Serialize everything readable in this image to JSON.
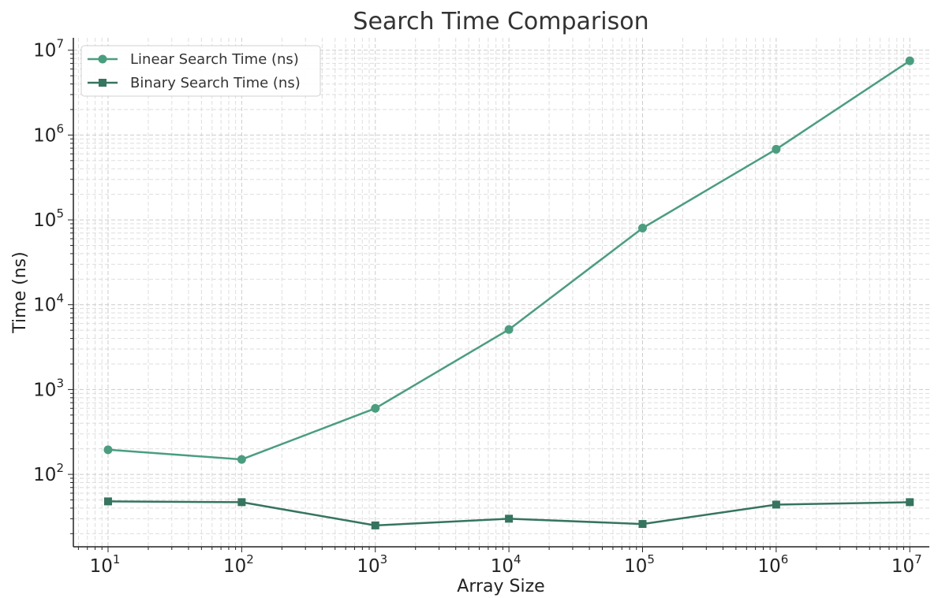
{
  "chart_data": {
    "type": "line",
    "title": "Search Time Comparison",
    "xlabel": "Array Size",
    "ylabel": "Time (ns)",
    "xscale": "log",
    "yscale": "log",
    "xlim": [
      5.5,
      14000000
    ],
    "ylim": [
      14,
      14000000
    ],
    "grid": true,
    "grid_minor": true,
    "legend_position": "top-left",
    "x": [
      10,
      100,
      1000,
      10000,
      100000,
      1000000,
      10000000
    ],
    "x_ticks": [
      {
        "base": "10",
        "exp": "1"
      },
      {
        "base": "10",
        "exp": "2"
      },
      {
        "base": "10",
        "exp": "3"
      },
      {
        "base": "10",
        "exp": "4"
      },
      {
        "base": "10",
        "exp": "5"
      },
      {
        "base": "10",
        "exp": "6"
      },
      {
        "base": "10",
        "exp": "7"
      }
    ],
    "y_ticks": [
      {
        "value": 100,
        "base": "10",
        "exp": "2"
      },
      {
        "value": 1000,
        "base": "10",
        "exp": "3"
      },
      {
        "value": 10000,
        "base": "10",
        "exp": "4"
      },
      {
        "value": 100000,
        "base": "10",
        "exp": "5"
      },
      {
        "value": 1000000,
        "base": "10",
        "exp": "6"
      },
      {
        "value": 10000000,
        "base": "10",
        "exp": "7"
      }
    ],
    "series": [
      {
        "name": "Linear Search Time (ns)",
        "color": "#4a9e80",
        "marker": "circle",
        "values": [
          195,
          150,
          600,
          5100,
          80000,
          680000,
          7500000
        ]
      },
      {
        "name": "Binary Search Time (ns)",
        "color": "#357560",
        "marker": "square",
        "values": [
          48,
          47,
          25,
          30,
          26,
          44,
          47
        ]
      }
    ]
  }
}
